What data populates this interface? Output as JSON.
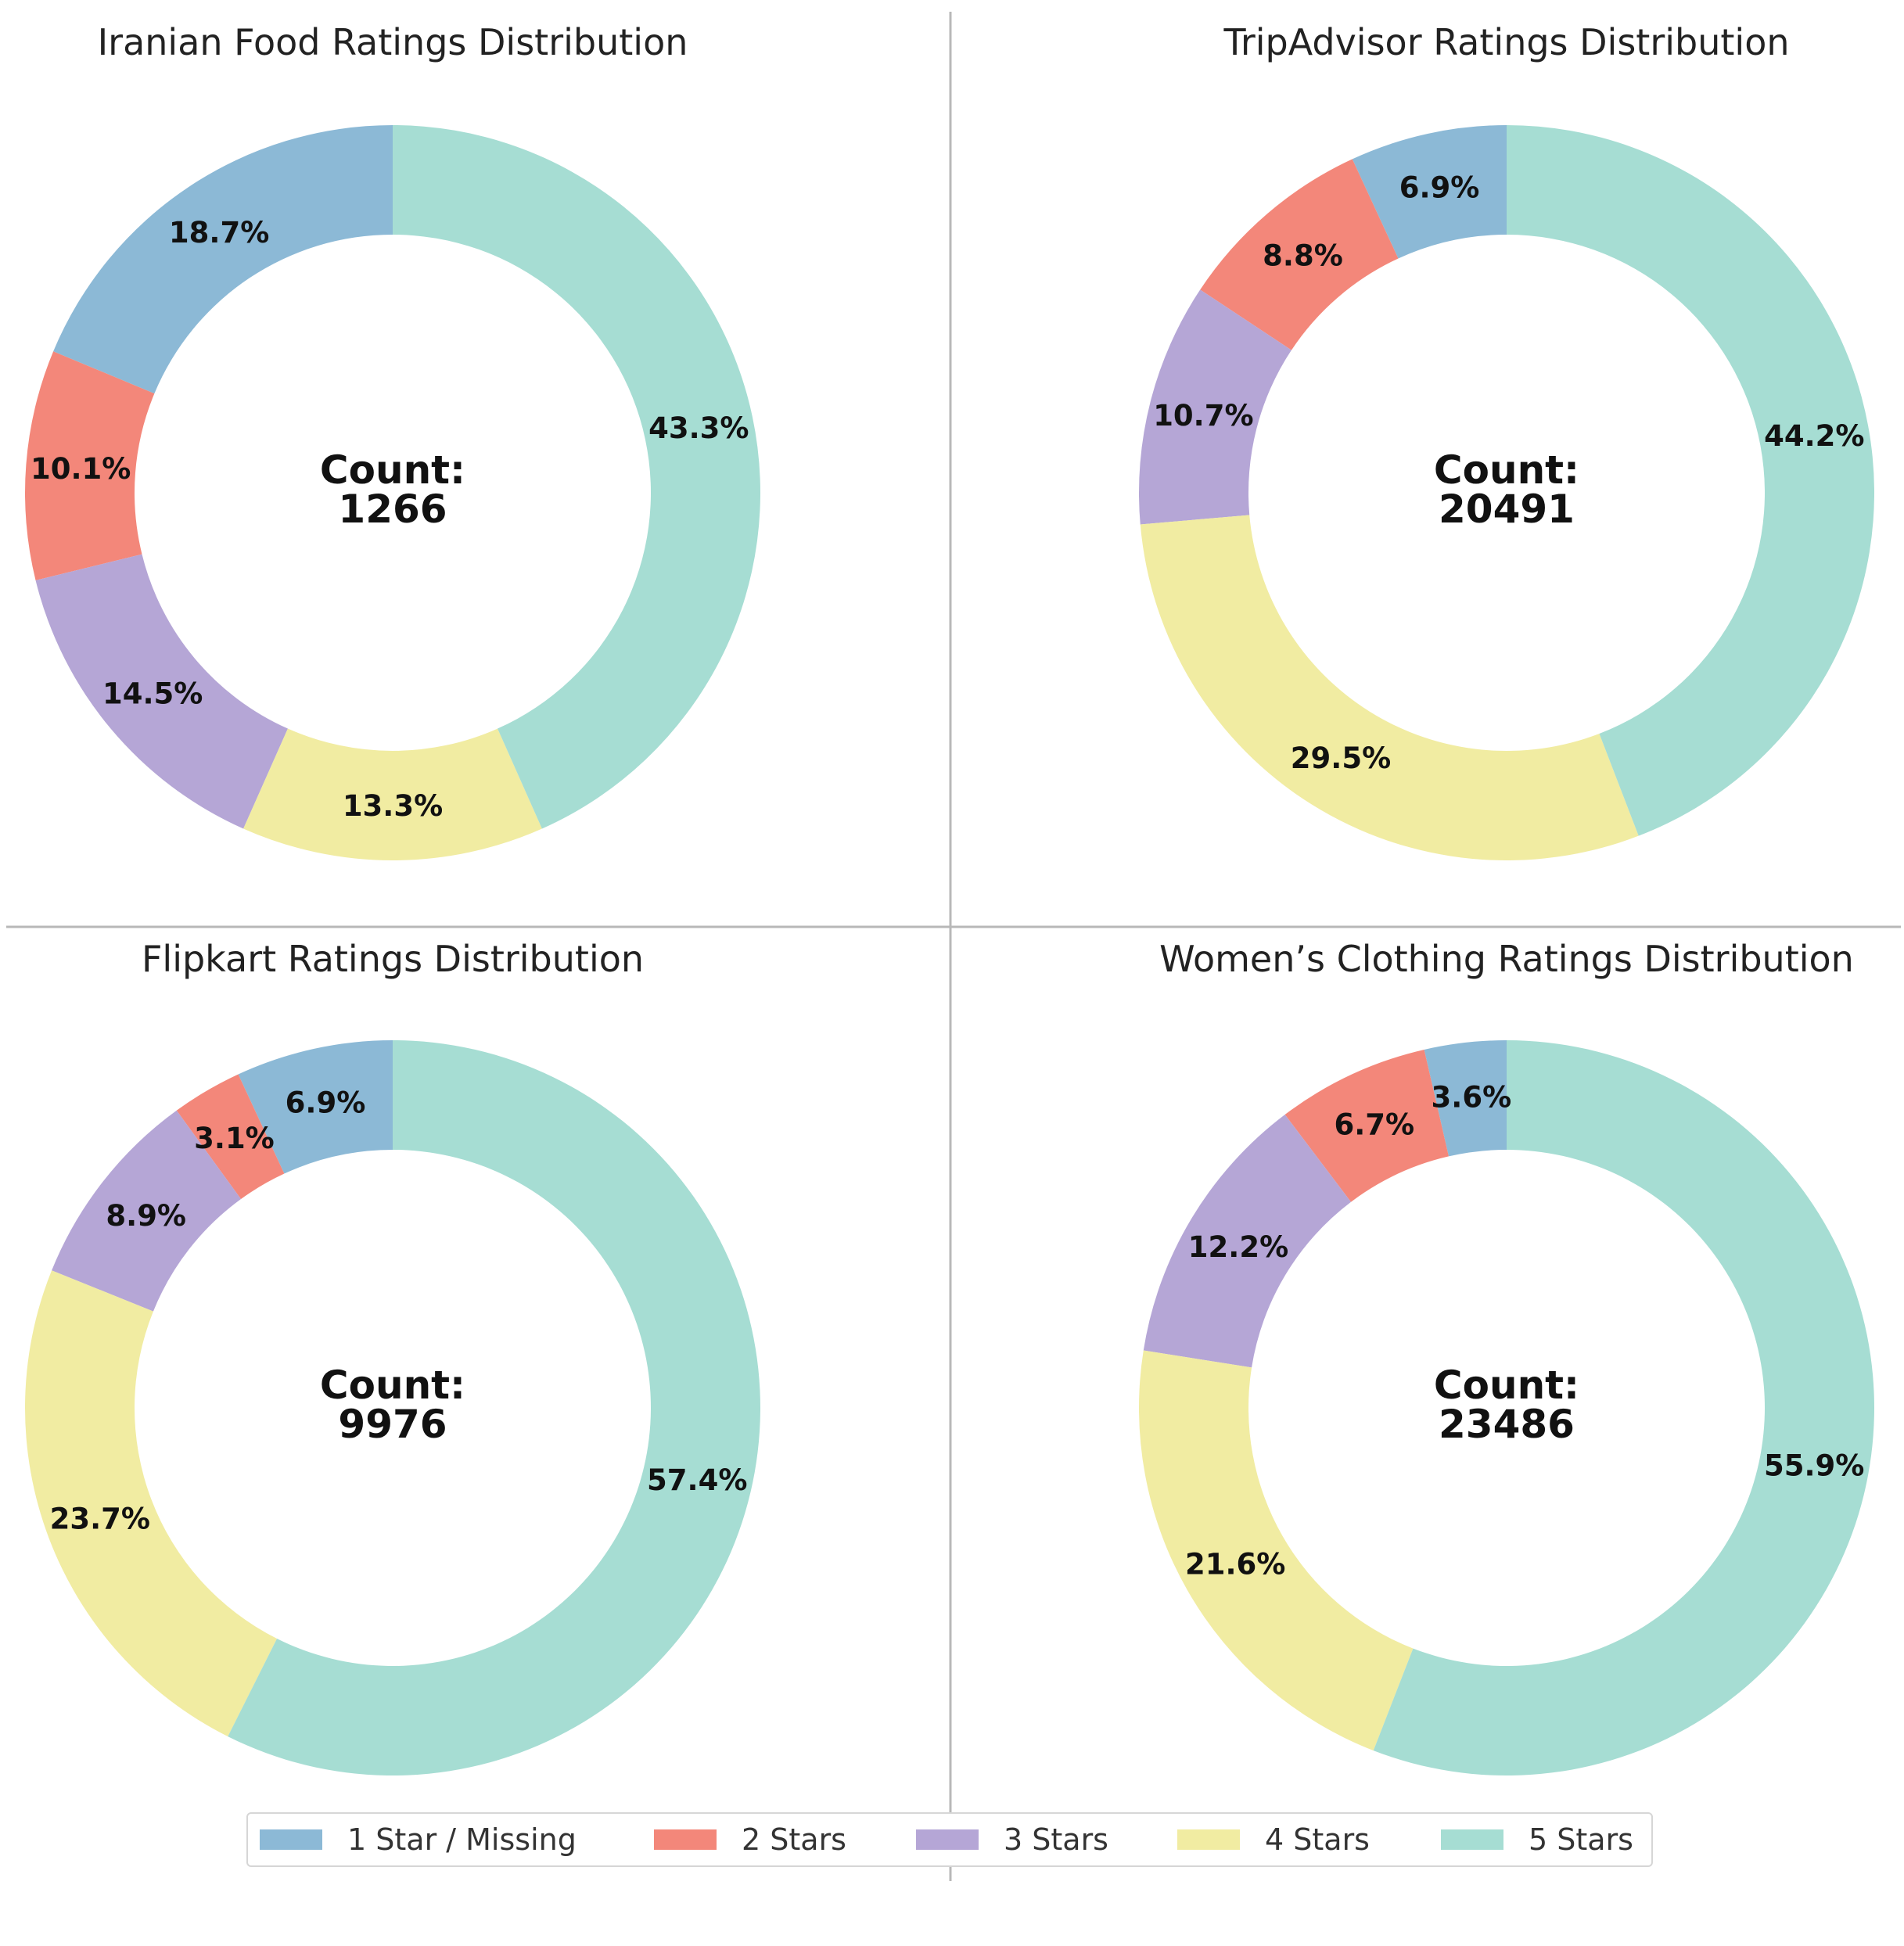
{
  "chart_data": [
    {
      "type": "pie",
      "variant": "donut",
      "title": "Iranian Food Ratings Distribution",
      "categories": [
        "1 Star / Missing",
        "2 Stars",
        "3 Stars",
        "4 Stars",
        "5 Stars"
      ],
      "values": [
        18.7,
        10.1,
        14.5,
        13.3,
        43.3
      ],
      "labels": [
        "18.7%",
        "10.1%",
        "14.5%",
        "13.3%",
        "43.3%"
      ],
      "center_label": "Count:",
      "center_value": "1266"
    },
    {
      "type": "pie",
      "variant": "donut",
      "title": "TripAdvisor Ratings Distribution",
      "categories": [
        "1 Star / Missing",
        "2 Stars",
        "3 Stars",
        "4 Stars",
        "5 Stars"
      ],
      "values": [
        6.9,
        8.8,
        10.7,
        29.5,
        44.2
      ],
      "labels": [
        "6.9%",
        "8.8%",
        "10.7%",
        "29.5%",
        "44.2%"
      ],
      "center_label": "Count:",
      "center_value": "20491"
    },
    {
      "type": "pie",
      "variant": "donut",
      "title": "Flipkart Ratings Distribution",
      "categories": [
        "1 Star / Missing",
        "2 Stars",
        "3 Stars",
        "4 Stars",
        "5 Stars"
      ],
      "values": [
        6.9,
        3.1,
        8.9,
        23.7,
        57.4
      ],
      "labels": [
        "6.9%",
        "3.1%",
        "8.9%",
        "23.7%",
        "57.4%"
      ],
      "center_label": "Count:",
      "center_value": "9976"
    },
    {
      "type": "pie",
      "variant": "donut",
      "title": "Women’s Clothing Ratings Distribution",
      "categories": [
        "1 Star / Missing",
        "2 Stars",
        "3 Stars",
        "4 Stars",
        "5 Stars"
      ],
      "values": [
        3.6,
        6.7,
        12.2,
        21.6,
        55.9
      ],
      "labels": [
        "3.6%",
        "6.7%",
        "12.2%",
        "21.6%",
        "55.9%"
      ],
      "center_label": "Count:",
      "center_value": "23486"
    }
  ],
  "legend": {
    "placement": "bottom-center",
    "items": [
      {
        "label": "1 Star / Missing",
        "color": "#8cb9d6"
      },
      {
        "label": "2 Stars",
        "color": "#f3877a"
      },
      {
        "label": "3 Stars",
        "color": "#b5a6d6"
      },
      {
        "label": "4 Stars",
        "color": "#f1eca2"
      },
      {
        "label": "5 Stars",
        "color": "#a6ddd3"
      }
    ]
  }
}
